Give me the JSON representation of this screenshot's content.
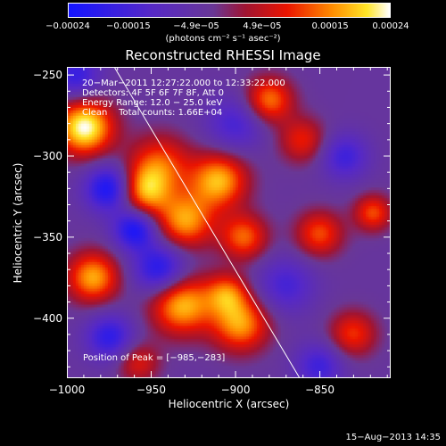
{
  "chart_data": {
    "type": "heatmap",
    "title": "Reconstructed RHESSI Image",
    "xlabel": "Heliocentric X (arcsec)",
    "ylabel": "Heliocentric Y (arcsec)",
    "xlim": [
      -1000,
      -808
    ],
    "ylim": [
      -437,
      -245
    ],
    "x_ticks": [
      -1000,
      -950,
      -900,
      -850
    ],
    "x_tick_labels": [
      "−1000",
      "−950",
      "−900",
      "−850"
    ],
    "y_ticks": [
      -250,
      -300,
      -350,
      -400
    ],
    "y_tick_labels": [
      "−250",
      "−300",
      "−350",
      "−400"
    ],
    "colorbar": {
      "range": [
        -0.00024,
        0.00024
      ],
      "tick_values": [
        -0.00024,
        -0.00015,
        -4.9e-05,
        4.9e-05,
        0.00015,
        0.00024
      ],
      "tick_labels": [
        "−0.00024",
        "−0.00015",
        "−4.9e−05",
        "4.9e−05",
        "0.00015",
        "0.00024"
      ],
      "units": "(photons cm⁻² s⁻¹ asec⁻²)"
    },
    "info_lines": [
      "20−Mar−2011 12:27:22.000 to 12:33:22.000",
      "Detectors: 4F 5F 6F 7F 8F, Att 0",
      "Energy Range: 12.0 − 25.0 keV",
      "Clean    Total counts: 1.66E+04"
    ],
    "peak_label": "Position of Peak = [−985,−283]",
    "limb_line": {
      "x1": -972,
      "y1": -245,
      "x2": -862,
      "y2": -437
    },
    "sources": [
      {
        "x": -990,
        "y": -282,
        "sigma": 12,
        "amp": 1.0
      },
      {
        "x": -945,
        "y": -305,
        "sigma": 13,
        "amp": 0.55
      },
      {
        "x": -955,
        "y": -322,
        "sigma": 11,
        "amp": 0.7
      },
      {
        "x": -910,
        "y": -315,
        "sigma": 12,
        "amp": 0.78
      },
      {
        "x": -880,
        "y": -265,
        "sigma": 10,
        "amp": 0.65
      },
      {
        "x": -860,
        "y": -290,
        "sigma": 10,
        "amp": 0.45
      },
      {
        "x": -930,
        "y": -340,
        "sigma": 12,
        "amp": 0.72
      },
      {
        "x": -895,
        "y": -350,
        "sigma": 10,
        "amp": 0.6
      },
      {
        "x": -850,
        "y": -348,
        "sigma": 10,
        "amp": 0.55
      },
      {
        "x": -818,
        "y": -335,
        "sigma": 8,
        "amp": 0.55
      },
      {
        "x": -985,
        "y": -375,
        "sigma": 11,
        "amp": 0.75
      },
      {
        "x": -932,
        "y": -392,
        "sigma": 13,
        "amp": 0.8
      },
      {
        "x": -897,
        "y": -404,
        "sigma": 12,
        "amp": 0.72
      },
      {
        "x": -905,
        "y": -385,
        "sigma": 9,
        "amp": 0.55
      },
      {
        "x": -830,
        "y": -410,
        "sigma": 10,
        "amp": 0.5
      },
      {
        "x": -958,
        "y": -428,
        "sigma": 9,
        "amp": 0.4
      },
      {
        "x": -960,
        "y": -345,
        "sigma": 9,
        "amp": -0.7
      },
      {
        "x": -975,
        "y": -320,
        "sigma": 10,
        "amp": -0.75
      },
      {
        "x": -945,
        "y": -370,
        "sigma": 11,
        "amp": -0.65
      },
      {
        "x": -975,
        "y": -412,
        "sigma": 10,
        "amp": -0.55
      },
      {
        "x": -900,
        "y": -280,
        "sigma": 12,
        "amp": -0.4
      },
      {
        "x": -870,
        "y": -380,
        "sigma": 12,
        "amp": -0.4
      },
      {
        "x": -835,
        "y": -300,
        "sigma": 10,
        "amp": -0.45
      },
      {
        "x": -850,
        "y": -430,
        "sigma": 10,
        "amp": -0.45
      },
      {
        "x": -995,
        "y": -250,
        "sigma": 10,
        "amp": -0.5
      }
    ]
  },
  "footer": {
    "date": "15−Aug−2013 14:35"
  }
}
